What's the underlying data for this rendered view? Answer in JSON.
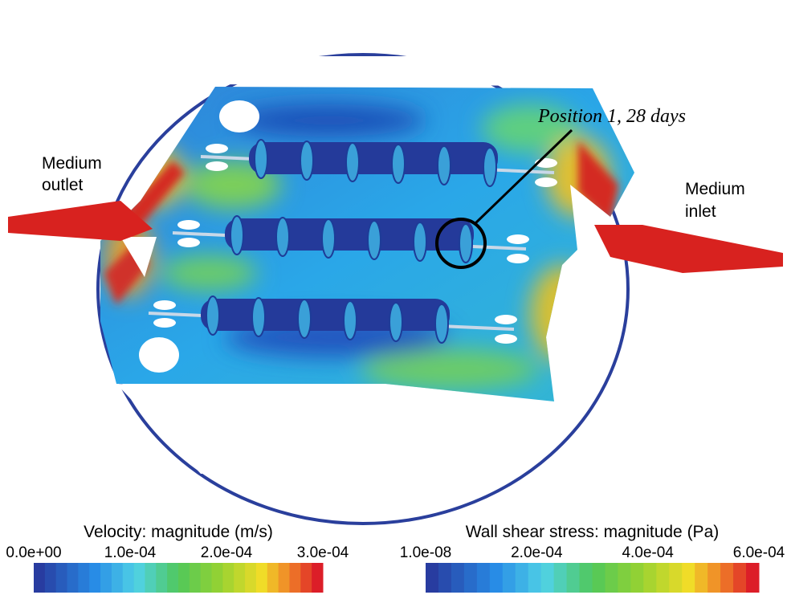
{
  "annotations": {
    "outlet": [
      "Medium",
      "outlet"
    ],
    "inlet": [
      "Medium",
      "inlet"
    ],
    "position": "Position 1, 28 days"
  },
  "legends": [
    {
      "title": "Velocity: magnitude (m/s)",
      "ticks": [
        "0.0e+00",
        "1.0e-04",
        "2.0e-04",
        "3.0e-04"
      ]
    },
    {
      "title": "Wall shear stress: magnitude (Pa)",
      "ticks": [
        "1.0e-08",
        "2.0e-04",
        "4.0e-04",
        "6.0e-04"
      ]
    }
  ]
}
